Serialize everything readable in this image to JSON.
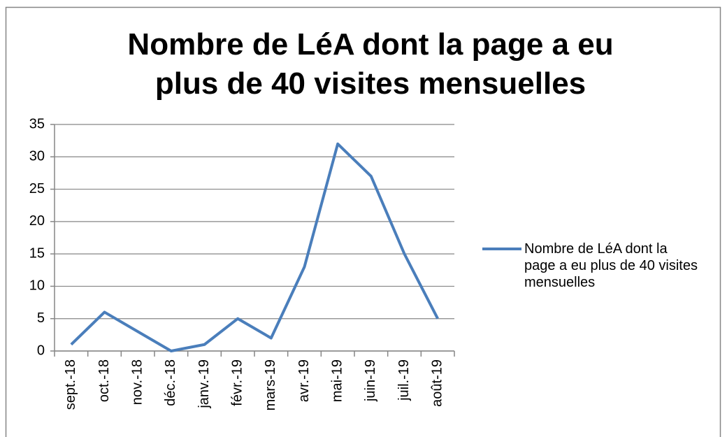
{
  "chart_data": {
    "type": "line",
    "title": "Nombre de LéA dont la page a eu plus de 40 visites mensuelles",
    "categories": [
      "sept.-18",
      "oct.-18",
      "nov.-18",
      "déc.-18",
      "janv.-19",
      "févr.-19",
      "mars-19",
      "avr.-19",
      "mai-19",
      "juin-19",
      "juil.-19",
      "août-19"
    ],
    "series": [
      {
        "name": "Nombre de LéA dont la page a eu plus de 40 visites mensuelles",
        "color": "#4a7ebb",
        "values": [
          1,
          6,
          3,
          0,
          1,
          5,
          2,
          13,
          32,
          27,
          15,
          5
        ]
      }
    ],
    "ylim": [
      0,
      35
    ],
    "yticks": [
      0,
      5,
      10,
      15,
      20,
      25,
      30,
      35
    ],
    "grid": true,
    "legend": "right"
  }
}
